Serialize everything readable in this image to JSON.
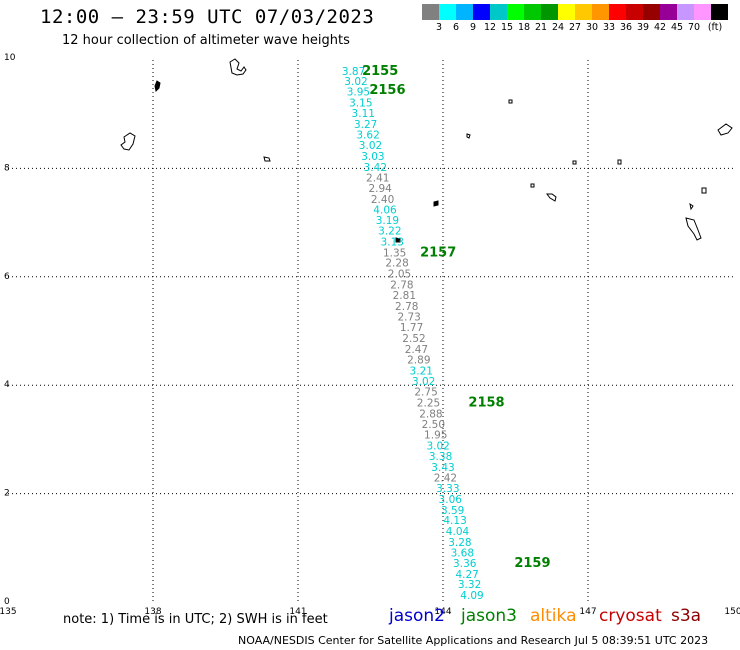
{
  "title": "12:00 – 23:59 UTC 07/03/2023",
  "subtitle": "12 hour collection of altimeter wave heights",
  "legend": {
    "colors": [
      "#808080",
      "#00ffff",
      "#00b4ff",
      "#0000ff",
      "#00c8c8",
      "#00ff00",
      "#00c800",
      "#009600",
      "#ffff00",
      "#ffc800",
      "#ff9600",
      "#ff0000",
      "#c80000",
      "#960000",
      "#960096",
      "#c896ff",
      "#ff96ff",
      "#000000"
    ],
    "labels": [
      "3",
      "6",
      "9",
      "12",
      "15",
      "18",
      "21",
      "24",
      "27",
      "30",
      "33",
      "36",
      "39",
      "42",
      "45",
      "70",
      "(ft)"
    ]
  },
  "map": {
    "x_ticks": [
      "135",
      "138",
      "141",
      "144",
      "147",
      "150"
    ],
    "y_ticks": [
      "10",
      "8",
      "6",
      "4",
      "2",
      "0"
    ],
    "x_range": [
      135,
      150
    ],
    "y_range": [
      0,
      10
    ],
    "grid_x": [
      138,
      141,
      144,
      147
    ],
    "grid_y": [
      2,
      4,
      6,
      8
    ]
  },
  "track_points": [
    {
      "lon": 142.15,
      "lat": 9.8,
      "swh": "3.87",
      "sat": "jason3"
    },
    {
      "lon": 142.2,
      "lat": 9.61,
      "swh": "3.02",
      "sat": "jason3"
    },
    {
      "lon": 142.25,
      "lat": 9.42,
      "swh": "3.95",
      "sat": "jason3"
    },
    {
      "lon": 142.3,
      "lat": 9.22,
      "swh": "3.15",
      "sat": "jason3"
    },
    {
      "lon": 142.35,
      "lat": 9.02,
      "swh": "3.11",
      "sat": "jason3"
    },
    {
      "lon": 142.4,
      "lat": 8.82,
      "swh": "3.27",
      "sat": "jason3"
    },
    {
      "lon": 142.45,
      "lat": 8.63,
      "swh": "3.62",
      "sat": "jason3"
    },
    {
      "lon": 142.5,
      "lat": 8.43,
      "swh": "3.02",
      "sat": "jason3"
    },
    {
      "lon": 142.55,
      "lat": 8.23,
      "swh": "3.03",
      "sat": "jason3"
    },
    {
      "lon": 142.6,
      "lat": 8.03,
      "swh": "3.42",
      "sat": "jason3"
    },
    {
      "lon": 142.65,
      "lat": 7.83,
      "swh": "2.41",
      "sat": "other"
    },
    {
      "lon": 142.7,
      "lat": 7.64,
      "swh": "2.94",
      "sat": "other"
    },
    {
      "lon": 142.75,
      "lat": 7.44,
      "swh": "2.40",
      "sat": "other"
    },
    {
      "lon": 142.8,
      "lat": 7.24,
      "swh": "4.06",
      "sat": "jason3"
    },
    {
      "lon": 142.85,
      "lat": 7.05,
      "swh": "3.19",
      "sat": "jason3"
    },
    {
      "lon": 142.9,
      "lat": 6.85,
      "swh": "3.22",
      "sat": "jason3"
    },
    {
      "lon": 142.95,
      "lat": 6.65,
      "swh": "3.13",
      "sat": "jason3"
    },
    {
      "lon": 143.0,
      "lat": 6.45,
      "swh": "1.35",
      "sat": "other"
    },
    {
      "lon": 143.05,
      "lat": 6.26,
      "swh": "2.28",
      "sat": "other"
    },
    {
      "lon": 143.1,
      "lat": 6.06,
      "swh": "2.05",
      "sat": "other"
    },
    {
      "lon": 143.15,
      "lat": 5.86,
      "swh": "2.78",
      "sat": "other"
    },
    {
      "lon": 143.2,
      "lat": 5.66,
      "swh": "2.81",
      "sat": "other"
    },
    {
      "lon": 143.25,
      "lat": 5.46,
      "swh": "2.78",
      "sat": "other"
    },
    {
      "lon": 143.3,
      "lat": 5.27,
      "swh": "2.73",
      "sat": "other"
    },
    {
      "lon": 143.35,
      "lat": 5.07,
      "swh": "1.77",
      "sat": "other"
    },
    {
      "lon": 143.4,
      "lat": 4.87,
      "swh": "2.52",
      "sat": "other"
    },
    {
      "lon": 143.45,
      "lat": 4.67,
      "swh": "2.47",
      "sat": "other"
    },
    {
      "lon": 143.5,
      "lat": 4.47,
      "swh": "2.89",
      "sat": "other"
    },
    {
      "lon": 143.55,
      "lat": 4.27,
      "swh": "3.21",
      "sat": "jason3"
    },
    {
      "lon": 143.6,
      "lat": 4.08,
      "swh": "3.02",
      "sat": "jason3"
    },
    {
      "lon": 143.65,
      "lat": 3.88,
      "swh": "2.75",
      "sat": "other"
    },
    {
      "lon": 143.7,
      "lat": 3.68,
      "swh": "2.25",
      "sat": "other"
    },
    {
      "lon": 143.75,
      "lat": 3.48,
      "swh": "2.88",
      "sat": "other"
    },
    {
      "lon": 143.8,
      "lat": 3.28,
      "swh": "2.50",
      "sat": "other"
    },
    {
      "lon": 143.85,
      "lat": 3.09,
      "swh": "1.95",
      "sat": "other"
    },
    {
      "lon": 143.9,
      "lat": 2.89,
      "swh": "3.02",
      "sat": "jason3"
    },
    {
      "lon": 143.95,
      "lat": 2.69,
      "swh": "3.38",
      "sat": "jason3"
    },
    {
      "lon": 144.0,
      "lat": 2.49,
      "swh": "3.43",
      "sat": "jason3"
    },
    {
      "lon": 144.05,
      "lat": 2.3,
      "swh": "2.42",
      "sat": "other"
    },
    {
      "lon": 144.1,
      "lat": 2.1,
      "swh": "3.33",
      "sat": "jason3"
    },
    {
      "lon": 144.15,
      "lat": 1.9,
      "swh": "3.06",
      "sat": "jason3"
    },
    {
      "lon": 144.2,
      "lat": 1.7,
      "swh": "3.59",
      "sat": "jason3"
    },
    {
      "lon": 144.25,
      "lat": 1.51,
      "swh": "4.13",
      "sat": "jason3"
    },
    {
      "lon": 144.3,
      "lat": 1.31,
      "swh": "4.04",
      "sat": "jason3"
    },
    {
      "lon": 144.35,
      "lat": 1.11,
      "swh": "3.28",
      "sat": "jason3"
    },
    {
      "lon": 144.4,
      "lat": 0.91,
      "swh": "3.68",
      "sat": "jason3"
    },
    {
      "lon": 144.45,
      "lat": 0.72,
      "swh": "3.36",
      "sat": "jason3"
    },
    {
      "lon": 144.5,
      "lat": 0.52,
      "swh": "4.27",
      "sat": "jason3"
    },
    {
      "lon": 144.55,
      "lat": 0.33,
      "swh": "3.32",
      "sat": "jason3"
    },
    {
      "lon": 144.6,
      "lat": 0.13,
      "swh": "4.09",
      "sat": "jason3"
    }
  ],
  "time_labels": [
    {
      "lon": 142.7,
      "lat": 9.8,
      "text": "2155"
    },
    {
      "lon": 142.85,
      "lat": 9.45,
      "text": "2156"
    },
    {
      "lon": 143.9,
      "lat": 6.45,
      "text": "2157"
    },
    {
      "lon": 144.9,
      "lat": 3.68,
      "text": "2158"
    },
    {
      "lon": 145.85,
      "lat": 0.72,
      "text": "2159"
    }
  ],
  "colors": {
    "jason3": "#00ced1",
    "other": "#808080",
    "time": "#008000"
  },
  "footer": {
    "note": "note: 1) Time is in UTC; 2) SWH is in feet",
    "satellites": [
      {
        "name": "jason2",
        "color": "#0000cd"
      },
      {
        "name": "jason3",
        "color": "#008000"
      },
      {
        "name": "altika",
        "color": "#ff8c00"
      },
      {
        "name": "cryosat",
        "color": "#c80000"
      },
      {
        "name": "s3a",
        "color": "#8b0000"
      }
    ],
    "credit": "NOAA/NESDIS Center for Satellite Applications and Research   Jul  5 08:39:51 UTC 2023"
  }
}
